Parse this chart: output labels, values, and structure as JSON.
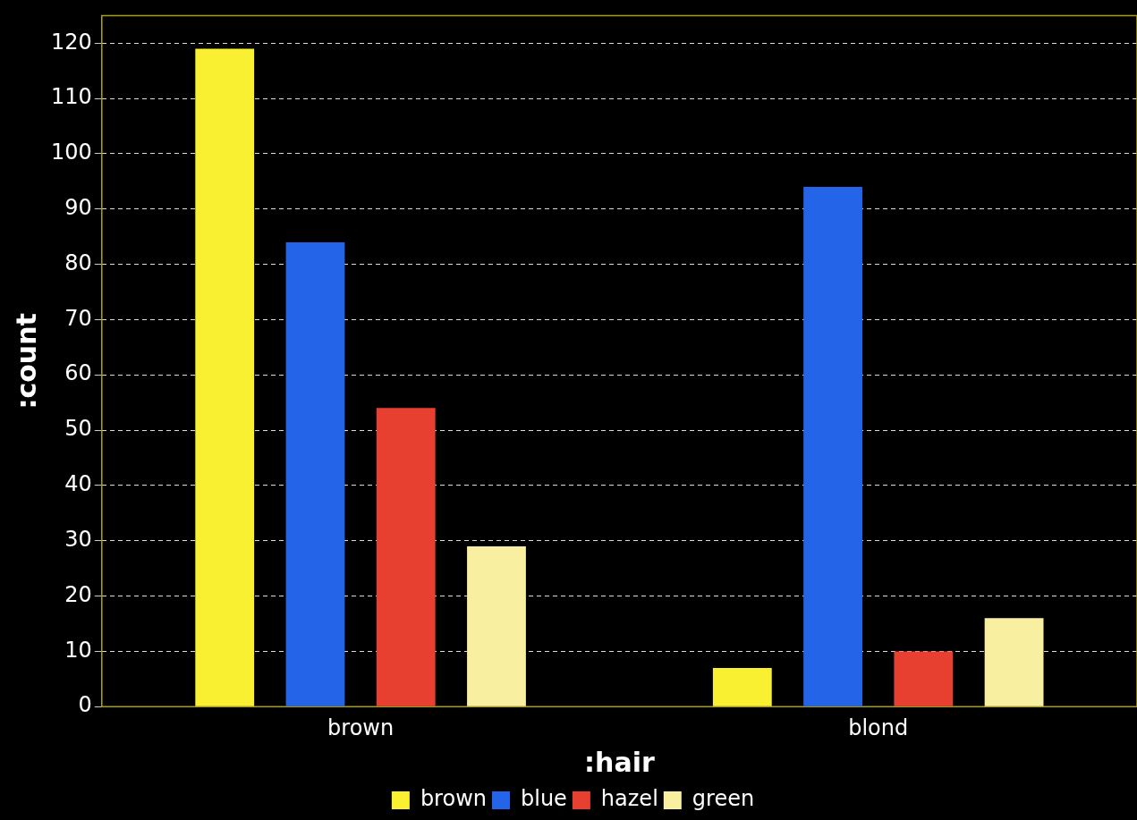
{
  "chart_data": {
    "type": "bar",
    "xlabel": ":hair",
    "ylabel": ":count",
    "categories": [
      "brown",
      "blond"
    ],
    "series": [
      {
        "name": "brown",
        "color": "#f8f030",
        "values": [
          119,
          7
        ]
      },
      {
        "name": "blue",
        "color": "#2464e8",
        "values": [
          84,
          94
        ]
      },
      {
        "name": "hazel",
        "color": "#e84030",
        "values": [
          54,
          10
        ]
      },
      {
        "name": "green",
        "color": "#f8f0a0",
        "values": [
          29,
          16
        ]
      }
    ],
    "ylim": [
      0,
      125
    ],
    "yticks": [
      0,
      10,
      20,
      30,
      40,
      50,
      60,
      70,
      80,
      90,
      100,
      110,
      120
    ],
    "grid": "y",
    "legend": "bottom"
  }
}
